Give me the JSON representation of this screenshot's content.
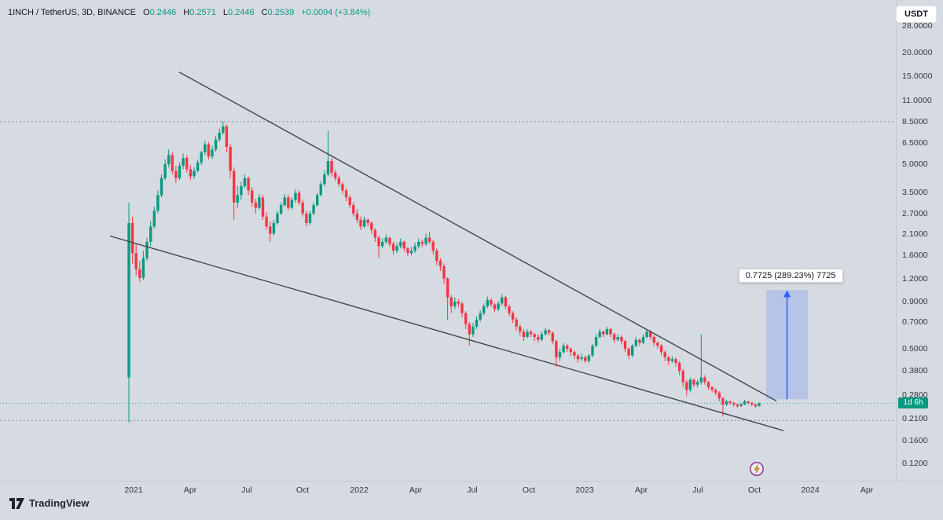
{
  "header": {
    "symbol_title": "1INCH / TetherUS, 3D, BINANCE",
    "ohlc": [
      {
        "label": "O",
        "value": "0.2446"
      },
      {
        "label": "H",
        "value": "0.2571"
      },
      {
        "label": "L",
        "value": "0.2446"
      },
      {
        "label": "C",
        "value": "0.2539"
      }
    ],
    "change": "+0.0094 (+3.84%)"
  },
  "currency_button": {
    "label": "USDT"
  },
  "price_scale": {
    "countdown_badge": "1d 6h",
    "ticks": [
      {
        "label": "28.0000",
        "price": 28
      },
      {
        "label": "20.0000",
        "price": 20
      },
      {
        "label": "15.0000",
        "price": 15
      },
      {
        "label": "11.0000",
        "price": 11
      },
      {
        "label": "8.5000",
        "price": 8.5
      },
      {
        "label": "6.5000",
        "price": 6.5
      },
      {
        "label": "5.0000",
        "price": 5
      },
      {
        "label": "3.5000",
        "price": 3.5
      },
      {
        "label": "2.7000",
        "price": 2.7
      },
      {
        "label": "2.1000",
        "price": 2.1
      },
      {
        "label": "1.6000",
        "price": 1.6
      },
      {
        "label": "1.2000",
        "price": 1.2
      },
      {
        "label": "0.9000",
        "price": 0.9
      },
      {
        "label": "0.7000",
        "price": 0.7
      },
      {
        "label": "0.5000",
        "price": 0.5
      },
      {
        "label": "0.3800",
        "price": 0.38
      },
      {
        "label": "0.2800",
        "price": 0.28
      },
      {
        "label": "0.2100",
        "price": 0.21
      },
      {
        "label": "0.1600",
        "price": 0.16
      },
      {
        "label": "0.1200",
        "price": 0.12
      }
    ]
  },
  "time_scale": {
    "ticks": [
      {
        "label": "2021",
        "month": 0
      },
      {
        "label": "Apr",
        "month": 3
      },
      {
        "label": "Jul",
        "month": 6
      },
      {
        "label": "Oct",
        "month": 9
      },
      {
        "label": "2022",
        "month": 12
      },
      {
        "label": "Apr",
        "month": 15
      },
      {
        "label": "Jul",
        "month": 18
      },
      {
        "label": "Oct",
        "month": 21
      },
      {
        "label": "2023",
        "month": 24
      },
      {
        "label": "Apr",
        "month": 27
      },
      {
        "label": "Jul",
        "month": 30
      },
      {
        "label": "Oct",
        "month": 33
      },
      {
        "label": "2024",
        "month": 36
      },
      {
        "label": "Apr",
        "month": 39
      }
    ]
  },
  "measure_tool": {
    "label": "0.7725 (289.23%) 7725"
  },
  "branding": {
    "name": "TradingView"
  },
  "colors": {
    "up": "#089981",
    "down": "#f23645",
    "accent": "#2962ff",
    "background": "#d6dae1",
    "text": "#131722",
    "trendline": "#42464e"
  },
  "chart_data": {
    "type": "candlestick",
    "title": "1INCH / TetherUS, 3D, BINANCE",
    "scale": "log",
    "x_range": [
      "2021",
      "Apr 2024"
    ],
    "y_ticks": [
      28,
      20,
      15,
      11,
      8.5,
      6.5,
      5,
      3.5,
      2.7,
      2.1,
      1.6,
      1.2,
      0.9,
      0.7,
      0.5,
      0.38,
      0.28,
      0.21,
      0.16,
      0.12
    ],
    "current_price": 0.2539,
    "dotted_levels": [
      8.5,
      0.205
    ],
    "candles": [
      [
        0.35,
        3.1,
        0.2,
        2.4
      ],
      [
        2.4,
        2.6,
        1.45,
        1.65
      ],
      [
        1.65,
        1.85,
        1.25,
        1.35
      ],
      [
        1.35,
        1.5,
        1.15,
        1.21
      ],
      [
        1.21,
        1.7,
        1.18,
        1.55
      ],
      [
        1.55,
        2.0,
        1.5,
        1.9
      ],
      [
        1.9,
        2.45,
        1.8,
        2.3
      ],
      [
        2.3,
        2.95,
        2.25,
        2.8
      ],
      [
        2.8,
        3.6,
        2.7,
        3.4
      ],
      [
        3.4,
        4.4,
        3.3,
        4.2
      ],
      [
        4.2,
        5.3,
        4.1,
        5.0
      ],
      [
        5.0,
        6.0,
        4.8,
        5.6
      ],
      [
        5.6,
        5.8,
        4.4,
        4.6
      ],
      [
        4.6,
        4.9,
        3.95,
        4.2
      ],
      [
        4.2,
        5.1,
        4.1,
        4.9
      ],
      [
        4.9,
        5.7,
        4.7,
        5.4
      ],
      [
        5.4,
        5.6,
        4.5,
        4.7
      ],
      [
        4.7,
        4.95,
        4.1,
        4.3
      ],
      [
        4.3,
        4.8,
        4.15,
        4.6
      ],
      [
        4.6,
        5.3,
        4.5,
        5.1
      ],
      [
        5.1,
        5.9,
        4.95,
        5.8
      ],
      [
        5.8,
        6.7,
        5.6,
        6.4
      ],
      [
        6.4,
        6.6,
        5.3,
        5.5
      ],
      [
        5.5,
        6.3,
        5.35,
        6.0
      ],
      [
        6.0,
        7.1,
        5.85,
        6.8
      ],
      [
        6.8,
        7.8,
        6.6,
        7.4
      ],
      [
        7.4,
        8.55,
        7.2,
        8.0
      ],
      [
        8.0,
        8.2,
        5.8,
        6.2
      ],
      [
        6.2,
        6.4,
        4.2,
        4.6
      ],
      [
        4.6,
        4.8,
        2.5,
        3.1
      ],
      [
        3.1,
        3.8,
        2.9,
        3.4
      ],
      [
        3.4,
        4.0,
        3.2,
        3.8
      ],
      [
        3.8,
        4.4,
        3.7,
        4.2
      ],
      [
        4.2,
        4.3,
        3.4,
        3.6
      ],
      [
        3.6,
        3.75,
        2.95,
        3.1
      ],
      [
        3.1,
        3.25,
        2.7,
        2.9
      ],
      [
        2.9,
        3.45,
        2.85,
        3.3
      ],
      [
        3.3,
        3.4,
        2.5,
        2.6
      ],
      [
        2.6,
        2.75,
        2.2,
        2.3
      ],
      [
        2.3,
        2.45,
        1.9,
        2.1
      ],
      [
        2.1,
        2.5,
        2.05,
        2.4
      ],
      [
        2.4,
        2.8,
        2.35,
        2.7
      ],
      [
        2.7,
        3.1,
        2.65,
        3.0
      ],
      [
        3.0,
        3.45,
        2.95,
        3.3
      ],
      [
        3.3,
        3.4,
        2.8,
        2.9
      ],
      [
        2.9,
        3.3,
        2.85,
        3.2
      ],
      [
        3.2,
        3.65,
        3.1,
        3.5
      ],
      [
        3.5,
        3.6,
        3.0,
        3.1
      ],
      [
        3.1,
        3.2,
        2.6,
        2.7
      ],
      [
        2.7,
        2.8,
        2.3,
        2.4
      ],
      [
        2.4,
        2.8,
        2.35,
        2.7
      ],
      [
        2.7,
        3.1,
        2.65,
        3.0
      ],
      [
        3.0,
        3.5,
        2.95,
        3.4
      ],
      [
        3.4,
        4.05,
        3.35,
        3.9
      ],
      [
        3.9,
        4.6,
        3.8,
        4.4
      ],
      [
        4.4,
        7.6,
        4.3,
        5.2
      ],
      [
        5.2,
        5.4,
        4.3,
        4.5
      ],
      [
        4.5,
        4.65,
        4.05,
        4.2
      ],
      [
        4.2,
        4.35,
        3.75,
        3.9
      ],
      [
        3.9,
        4.0,
        3.45,
        3.6
      ],
      [
        3.6,
        3.7,
        3.15,
        3.3
      ],
      [
        3.3,
        3.4,
        2.9,
        3.0
      ],
      [
        3.0,
        3.1,
        2.6,
        2.7
      ],
      [
        2.7,
        2.85,
        2.4,
        2.5
      ],
      [
        2.5,
        2.6,
        2.2,
        2.3
      ],
      [
        2.3,
        2.6,
        2.25,
        2.5
      ],
      [
        2.5,
        2.55,
        2.3,
        2.4
      ],
      [
        2.4,
        2.45,
        2.1,
        2.2
      ],
      [
        2.2,
        2.25,
        1.9,
        2.0
      ],
      [
        2.0,
        2.05,
        1.55,
        1.8
      ],
      [
        1.8,
        1.98,
        1.75,
        1.9
      ],
      [
        1.9,
        2.08,
        1.85,
        2.0
      ],
      [
        2.0,
        2.02,
        1.78,
        1.85
      ],
      [
        1.85,
        1.9,
        1.62,
        1.7
      ],
      [
        1.7,
        1.88,
        1.65,
        1.8
      ],
      [
        1.8,
        1.98,
        1.75,
        1.9
      ],
      [
        1.9,
        1.93,
        1.68,
        1.75
      ],
      [
        1.75,
        1.78,
        1.58,
        1.65
      ],
      [
        1.65,
        1.78,
        1.6,
        1.7
      ],
      [
        1.7,
        1.88,
        1.65,
        1.8
      ],
      [
        1.8,
        1.98,
        1.75,
        1.9
      ],
      [
        1.9,
        1.95,
        1.78,
        1.85
      ],
      [
        1.85,
        2.1,
        1.8,
        2.0
      ],
      [
        2.0,
        2.15,
        1.85,
        1.9
      ],
      [
        1.9,
        1.95,
        1.62,
        1.7
      ],
      [
        1.7,
        1.75,
        1.42,
        1.5
      ],
      [
        1.5,
        1.55,
        1.32,
        1.4
      ],
      [
        1.4,
        1.45,
        1.12,
        1.2
      ],
      [
        1.2,
        1.22,
        0.72,
        0.95
      ],
      [
        0.95,
        0.98,
        0.78,
        0.85
      ],
      [
        0.85,
        0.95,
        0.82,
        0.9
      ],
      [
        0.9,
        0.93,
        0.84,
        0.88
      ],
      [
        0.88,
        0.9,
        0.74,
        0.78
      ],
      [
        0.78,
        0.8,
        0.64,
        0.68
      ],
      [
        0.68,
        0.7,
        0.52,
        0.6
      ],
      [
        0.6,
        0.69,
        0.58,
        0.66
      ],
      [
        0.66,
        0.75,
        0.64,
        0.72
      ],
      [
        0.72,
        0.81,
        0.7,
        0.78
      ],
      [
        0.78,
        0.88,
        0.76,
        0.85
      ],
      [
        0.85,
        0.96,
        0.83,
        0.92
      ],
      [
        0.92,
        0.94,
        0.84,
        0.87
      ],
      [
        0.87,
        0.89,
        0.79,
        0.82
      ],
      [
        0.82,
        0.91,
        0.8,
        0.88
      ],
      [
        0.88,
        0.99,
        0.86,
        0.95
      ],
      [
        0.95,
        0.97,
        0.82,
        0.85
      ],
      [
        0.85,
        0.87,
        0.75,
        0.78
      ],
      [
        0.78,
        0.8,
        0.69,
        0.72
      ],
      [
        0.72,
        0.74,
        0.63,
        0.66
      ],
      [
        0.66,
        0.68,
        0.59,
        0.62
      ],
      [
        0.62,
        0.64,
        0.55,
        0.58
      ],
      [
        0.58,
        0.64,
        0.57,
        0.62
      ],
      [
        0.62,
        0.63,
        0.58,
        0.6
      ],
      [
        0.6,
        0.61,
        0.55,
        0.58
      ],
      [
        0.58,
        0.6,
        0.54,
        0.56
      ],
      [
        0.56,
        0.62,
        0.55,
        0.6
      ],
      [
        0.6,
        0.65,
        0.59,
        0.63
      ],
      [
        0.63,
        0.64,
        0.59,
        0.61
      ],
      [
        0.61,
        0.62,
        0.53,
        0.55
      ],
      [
        0.55,
        0.56,
        0.4,
        0.45
      ],
      [
        0.45,
        0.5,
        0.43,
        0.48
      ],
      [
        0.48,
        0.54,
        0.47,
        0.52
      ],
      [
        0.52,
        0.53,
        0.48,
        0.5
      ],
      [
        0.5,
        0.51,
        0.46,
        0.48
      ],
      [
        0.48,
        0.49,
        0.44,
        0.46
      ],
      [
        0.46,
        0.47,
        0.42,
        0.44
      ],
      [
        0.44,
        0.47,
        0.43,
        0.45
      ],
      [
        0.45,
        0.46,
        0.42,
        0.43
      ],
      [
        0.43,
        0.47,
        0.42,
        0.46
      ],
      [
        0.46,
        0.53,
        0.45,
        0.52
      ],
      [
        0.52,
        0.6,
        0.51,
        0.58
      ],
      [
        0.58,
        0.64,
        0.57,
        0.62
      ],
      [
        0.62,
        0.63,
        0.58,
        0.6
      ],
      [
        0.6,
        0.66,
        0.59,
        0.64
      ],
      [
        0.64,
        0.65,
        0.58,
        0.6
      ],
      [
        0.6,
        0.61,
        0.54,
        0.56
      ],
      [
        0.56,
        0.6,
        0.55,
        0.58
      ],
      [
        0.58,
        0.59,
        0.53,
        0.55
      ],
      [
        0.55,
        0.56,
        0.48,
        0.5
      ],
      [
        0.5,
        0.51,
        0.44,
        0.46
      ],
      [
        0.46,
        0.53,
        0.45,
        0.52
      ],
      [
        0.52,
        0.58,
        0.51,
        0.56
      ],
      [
        0.56,
        0.57,
        0.52,
        0.54
      ],
      [
        0.54,
        0.6,
        0.53,
        0.58
      ],
      [
        0.58,
        0.64,
        0.57,
        0.62
      ],
      [
        0.62,
        0.63,
        0.56,
        0.58
      ],
      [
        0.58,
        0.59,
        0.52,
        0.54
      ],
      [
        0.54,
        0.55,
        0.5,
        0.52
      ],
      [
        0.52,
        0.53,
        0.46,
        0.48
      ],
      [
        0.48,
        0.49,
        0.43,
        0.45
      ],
      [
        0.45,
        0.46,
        0.41,
        0.43
      ],
      [
        0.43,
        0.455,
        0.42,
        0.44
      ],
      [
        0.44,
        0.45,
        0.4,
        0.42
      ],
      [
        0.42,
        0.43,
        0.36,
        0.38
      ],
      [
        0.38,
        0.39,
        0.31,
        0.33
      ],
      [
        0.33,
        0.34,
        0.28,
        0.3
      ],
      [
        0.3,
        0.35,
        0.29,
        0.34
      ],
      [
        0.34,
        0.345,
        0.31,
        0.32
      ],
      [
        0.32,
        0.34,
        0.31,
        0.33
      ],
      [
        0.33,
        0.6,
        0.32,
        0.35
      ],
      [
        0.35,
        0.36,
        0.32,
        0.33
      ],
      [
        0.33,
        0.335,
        0.3,
        0.31
      ],
      [
        0.31,
        0.315,
        0.29,
        0.3
      ],
      [
        0.3,
        0.305,
        0.28,
        0.29
      ],
      [
        0.29,
        0.295,
        0.26,
        0.27
      ],
      [
        0.27,
        0.275,
        0.215,
        0.25
      ],
      [
        0.25,
        0.265,
        0.245,
        0.26
      ],
      [
        0.26,
        0.262,
        0.25,
        0.255
      ],
      [
        0.255,
        0.258,
        0.243,
        0.25
      ],
      [
        0.25,
        0.252,
        0.24,
        0.245
      ],
      [
        0.245,
        0.255,
        0.242,
        0.25
      ],
      [
        0.25,
        0.265,
        0.248,
        0.26
      ],
      [
        0.26,
        0.262,
        0.25,
        0.255
      ],
      [
        0.255,
        0.258,
        0.245,
        0.25
      ],
      [
        0.25,
        0.252,
        0.24,
        0.2446
      ],
      [
        0.2446,
        0.2571,
        0.2446,
        0.2539
      ]
    ],
    "drawings": {
      "trendlines": [
        {
          "name": "upper-trendline",
          "from_month": 2.42,
          "from_price": 15.76,
          "to_month": 34.18,
          "to_price": 0.2614
        },
        {
          "name": "lower-trendline",
          "from_month": -1.25,
          "from_price": 2.04,
          "to_month": 34.56,
          "to_price": 0.1806
        }
      ],
      "measure": {
        "from_month": 33.64,
        "to_month": 35.86,
        "from_price": 0.2671,
        "to_price": 1.0396,
        "change": 0.7725,
        "change_pct": 289.23
      }
    }
  }
}
